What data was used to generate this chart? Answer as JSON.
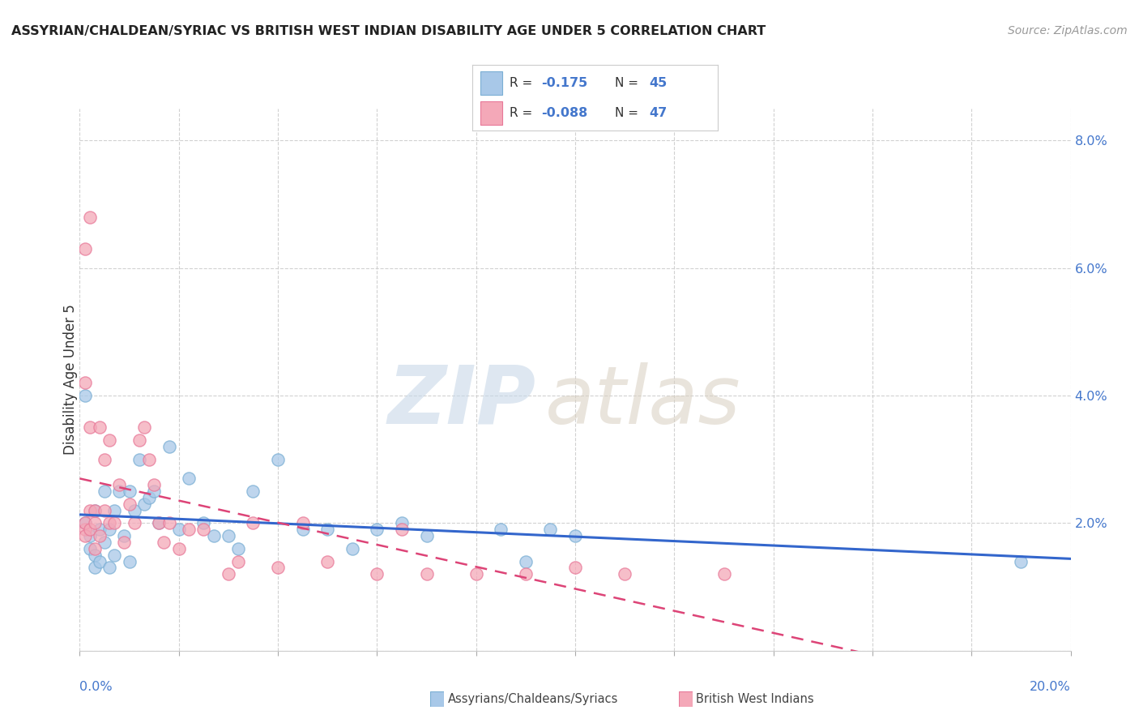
{
  "title": "ASSYRIAN/CHALDEAN/SYRIAC VS BRITISH WEST INDIAN DISABILITY AGE UNDER 5 CORRELATION CHART",
  "source": "Source: ZipAtlas.com",
  "ylabel": "Disability Age Under 5",
  "blue_color": "#a8c8e8",
  "pink_color": "#f4a8b8",
  "blue_edge_color": "#7bafd4",
  "pink_edge_color": "#e87898",
  "blue_line_color": "#3366cc",
  "pink_line_color": "#dd4477",
  "tick_label_color": "#4477cc",
  "xlim": [
    0.0,
    0.2
  ],
  "ylim": [
    0.0,
    0.085
  ],
  "ytick_vals": [
    0.0,
    0.02,
    0.04,
    0.06,
    0.08
  ],
  "ytick_labels": [
    "",
    "2.0%",
    "4.0%",
    "6.0%",
    "8.0%"
  ],
  "xtick_vals": [
    0.0,
    0.02,
    0.04,
    0.06,
    0.08,
    0.1,
    0.12,
    0.14,
    0.16,
    0.18,
    0.2
  ],
  "blue_x": [
    0.001,
    0.002,
    0.002,
    0.003,
    0.003,
    0.003,
    0.004,
    0.004,
    0.005,
    0.005,
    0.006,
    0.006,
    0.007,
    0.007,
    0.008,
    0.009,
    0.01,
    0.01,
    0.011,
    0.012,
    0.013,
    0.014,
    0.015,
    0.016,
    0.018,
    0.02,
    0.022,
    0.025,
    0.027,
    0.03,
    0.032,
    0.035,
    0.04,
    0.045,
    0.05,
    0.055,
    0.06,
    0.065,
    0.07,
    0.085,
    0.09,
    0.095,
    0.1,
    0.19,
    0.001
  ],
  "blue_y": [
    0.02,
    0.018,
    0.016,
    0.022,
    0.015,
    0.013,
    0.019,
    0.014,
    0.025,
    0.017,
    0.019,
    0.013,
    0.022,
    0.015,
    0.025,
    0.018,
    0.025,
    0.014,
    0.022,
    0.03,
    0.023,
    0.024,
    0.025,
    0.02,
    0.032,
    0.019,
    0.027,
    0.02,
    0.018,
    0.018,
    0.016,
    0.025,
    0.03,
    0.019,
    0.019,
    0.016,
    0.019,
    0.02,
    0.018,
    0.019,
    0.014,
    0.019,
    0.018,
    0.014,
    0.04
  ],
  "pink_x": [
    0.001,
    0.001,
    0.001,
    0.002,
    0.002,
    0.002,
    0.003,
    0.003,
    0.003,
    0.004,
    0.004,
    0.005,
    0.005,
    0.006,
    0.006,
    0.007,
    0.008,
    0.009,
    0.01,
    0.011,
    0.012,
    0.013,
    0.014,
    0.015,
    0.016,
    0.017,
    0.018,
    0.02,
    0.022,
    0.025,
    0.03,
    0.032,
    0.035,
    0.04,
    0.045,
    0.05,
    0.06,
    0.065,
    0.07,
    0.08,
    0.09,
    0.1,
    0.11,
    0.13,
    0.001,
    0.002,
    0.001
  ],
  "pink_y": [
    0.019,
    0.02,
    0.018,
    0.035,
    0.022,
    0.019,
    0.02,
    0.016,
    0.022,
    0.018,
    0.035,
    0.022,
    0.03,
    0.033,
    0.02,
    0.02,
    0.026,
    0.017,
    0.023,
    0.02,
    0.033,
    0.035,
    0.03,
    0.026,
    0.02,
    0.017,
    0.02,
    0.016,
    0.019,
    0.019,
    0.012,
    0.014,
    0.02,
    0.013,
    0.02,
    0.014,
    0.012,
    0.019,
    0.012,
    0.012,
    0.012,
    0.013,
    0.012,
    0.012,
    0.042,
    0.068,
    0.063
  ]
}
